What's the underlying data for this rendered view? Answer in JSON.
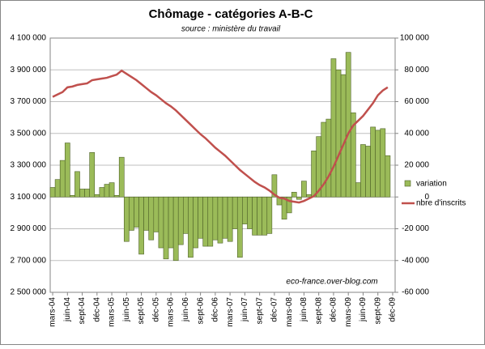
{
  "chart_data": {
    "type": "bar-line",
    "title": "Chômage - catégories A-B-C",
    "subtitle": "source : ministère du travail",
    "annotation": "eco-france.over-blog.com",
    "categories": [
      "mars-04",
      null,
      null,
      "juin-04",
      null,
      null,
      "sept-04",
      null,
      null,
      "déc-04",
      null,
      null,
      "mars-05",
      null,
      null,
      "juin-05",
      null,
      null,
      "sept-05",
      null,
      null,
      "déc-05",
      null,
      null,
      "mars-06",
      null,
      null,
      "juin-06",
      null,
      null,
      "sept-06",
      null,
      null,
      "déc-06",
      null,
      null,
      "mars-07",
      null,
      null,
      "juin-07",
      null,
      null,
      "sept-07",
      null,
      null,
      "déc-07",
      null,
      null,
      "mars-08",
      null,
      null,
      "juin-08",
      null,
      null,
      "sept-08",
      null,
      null,
      "déc-08",
      null,
      null,
      "mars-09",
      null,
      null,
      "juin-09",
      null,
      null,
      "sept-09",
      null,
      null,
      "déc-09"
    ],
    "series": [
      {
        "name": "variation",
        "type": "bar",
        "axis": "y2",
        "color": "#9bbb59",
        "values": [
          6000,
          11000,
          23000,
          34000,
          1000,
          16000,
          5000,
          5000,
          28000,
          1500,
          6000,
          8000,
          9000,
          1000,
          25000,
          -28000,
          -21000,
          -19000,
          -36000,
          -21000,
          -27000,
          -22000,
          -32000,
          -39000,
          -32000,
          -40000,
          -30000,
          -23000,
          -38000,
          -32000,
          -26000,
          -31000,
          -31000,
          -27000,
          -29000,
          -26000,
          -28000,
          -20000,
          -38000,
          -17000,
          -20000,
          -24000,
          -24000,
          -24000,
          -23000,
          14000,
          -5000,
          -14000,
          -10000,
          3000,
          -1500,
          10000,
          1500,
          29000,
          38000,
          47000,
          49000,
          87000,
          80000,
          77000,
          91000,
          53000,
          9000,
          33000,
          32000,
          44000,
          42000,
          43000,
          26000,
          null
        ]
      },
      {
        "name": "nbre d'inscrits",
        "type": "line",
        "axis": "y",
        "color": "#c0504d",
        "values": [
          3730000,
          3745000,
          3760000,
          3790000,
          3795000,
          3805000,
          3810000,
          3815000,
          3835000,
          3840000,
          3845000,
          3850000,
          3860000,
          3870000,
          3895000,
          3875000,
          3855000,
          3835000,
          3810000,
          3785000,
          3760000,
          3740000,
          3715000,
          3690000,
          3670000,
          3645000,
          3615000,
          3585000,
          3555000,
          3525000,
          3495000,
          3470000,
          3440000,
          3410000,
          3385000,
          3360000,
          3330000,
          3300000,
          3270000,
          3245000,
          3220000,
          3195000,
          3175000,
          3160000,
          3140000,
          3115000,
          3095000,
          3090000,
          3075000,
          3070000,
          3065000,
          3075000,
          3090000,
          3105000,
          3140000,
          3180000,
          3230000,
          3290000,
          3360000,
          3430000,
          3500000,
          3550000,
          3580000,
          3610000,
          3650000,
          3690000,
          3740000,
          3770000,
          3790000,
          null
        ]
      }
    ],
    "ylim": [
      2500000,
      4100000
    ],
    "yticks": [
      {
        "value": 2500000,
        "label": "2 500 000"
      },
      {
        "value": 2700000,
        "label": "2 700 000"
      },
      {
        "value": 2900000,
        "label": "2 900 000"
      },
      {
        "value": 3100000,
        "label": "3 100 000"
      },
      {
        "value": 3300000,
        "label": "3 300 000"
      },
      {
        "value": 3500000,
        "label": "3 500 000"
      },
      {
        "value": 3700000,
        "label": "3 700 000"
      },
      {
        "value": 3900000,
        "label": "3 900 000"
      },
      {
        "value": 4100000,
        "label": "4 100 000"
      }
    ],
    "y2lim": [
      -60000,
      100000
    ],
    "y2ticks": [
      {
        "value": -60000,
        "label": "-60 000"
      },
      {
        "value": -40000,
        "label": "-40 000"
      },
      {
        "value": -20000,
        "label": "-20 000"
      },
      0,
      {
        "value": 20000,
        "label": "20 000"
      },
      {
        "value": 40000,
        "label": "40 000"
      },
      {
        "value": 60000,
        "label": "60 000"
      },
      {
        "value": 80000,
        "label": "80 000"
      },
      {
        "value": 100000,
        "label": "100 000"
      }
    ],
    "grid": true,
    "legend": "right"
  }
}
